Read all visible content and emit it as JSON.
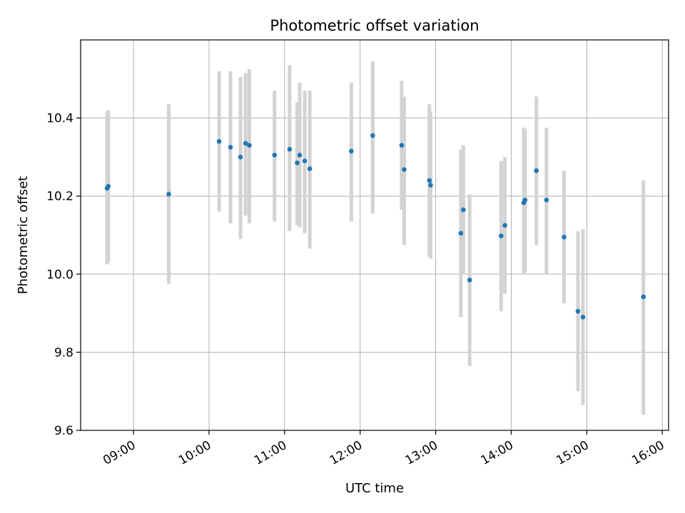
{
  "chart_data": {
    "type": "scatter",
    "title": "Photometric offset variation",
    "xlabel": "UTC time",
    "ylabel": "Photometric offset",
    "x_unit": "hours UTC",
    "xlim": [
      "08:18",
      "16:05"
    ],
    "ylim": [
      9.6,
      10.6
    ],
    "x_ticks": [
      "09:00",
      "10:00",
      "11:00",
      "12:00",
      "13:00",
      "14:00",
      "15:00",
      "16:00"
    ],
    "y_ticks": [
      "9.6",
      "9.8",
      "10.0",
      "10.2",
      "10.4"
    ],
    "grid": true,
    "legend": "none",
    "point_color": "#1f77b4",
    "errorbar_color": "#d3d3d3",
    "points": [
      {
        "x": "08:39",
        "y": 10.22,
        "ylow": 10.025,
        "yhigh": 10.415
      },
      {
        "x": "08:40",
        "y": 10.225,
        "ylow": 10.03,
        "yhigh": 10.42
      },
      {
        "x": "09:28",
        "y": 10.205,
        "ylow": 9.975,
        "yhigh": 10.435
      },
      {
        "x": "10:08",
        "y": 10.34,
        "ylow": 10.16,
        "yhigh": 10.52
      },
      {
        "x": "10:17",
        "y": 10.325,
        "ylow": 10.13,
        "yhigh": 10.52
      },
      {
        "x": "10:25",
        "y": 10.3,
        "ylow": 10.09,
        "yhigh": 10.505
      },
      {
        "x": "10:29",
        "y": 10.335,
        "ylow": 10.15,
        "yhigh": 10.515
      },
      {
        "x": "10:32",
        "y": 10.33,
        "ylow": 10.13,
        "yhigh": 10.525
      },
      {
        "x": "10:52",
        "y": 10.305,
        "ylow": 10.135,
        "yhigh": 10.47
      },
      {
        "x": "11:04",
        "y": 10.32,
        "ylow": 10.11,
        "yhigh": 10.535
      },
      {
        "x": "11:10",
        "y": 10.285,
        "ylow": 10.125,
        "yhigh": 10.44
      },
      {
        "x": "11:12",
        "y": 10.305,
        "ylow": 10.12,
        "yhigh": 10.49
      },
      {
        "x": "11:16",
        "y": 10.29,
        "ylow": 10.105,
        "yhigh": 10.47
      },
      {
        "x": "11:20",
        "y": 10.27,
        "ylow": 10.065,
        "yhigh": 10.47
      },
      {
        "x": "11:53",
        "y": 10.315,
        "ylow": 10.135,
        "yhigh": 10.49
      },
      {
        "x": "12:10",
        "y": 10.355,
        "ylow": 10.155,
        "yhigh": 10.545
      },
      {
        "x": "12:33",
        "y": 10.33,
        "ylow": 10.165,
        "yhigh": 10.495
      },
      {
        "x": "12:35",
        "y": 10.268,
        "ylow": 10.075,
        "yhigh": 10.455
      },
      {
        "x": "12:55",
        "y": 10.24,
        "ylow": 10.045,
        "yhigh": 10.435
      },
      {
        "x": "12:56",
        "y": 10.228,
        "ylow": 10.04,
        "yhigh": 10.415
      },
      {
        "x": "13:20",
        "y": 10.105,
        "ylow": 9.89,
        "yhigh": 10.32
      },
      {
        "x": "13:22",
        "y": 10.165,
        "ylow": 10.0,
        "yhigh": 10.33
      },
      {
        "x": "13:27",
        "y": 9.985,
        "ylow": 9.765,
        "yhigh": 10.205
      },
      {
        "x": "13:52",
        "y": 10.098,
        "ylow": 9.905,
        "yhigh": 10.29
      },
      {
        "x": "13:55",
        "y": 10.125,
        "ylow": 9.95,
        "yhigh": 10.3
      },
      {
        "x": "14:10",
        "y": 10.183,
        "ylow": 10.0,
        "yhigh": 10.375
      },
      {
        "x": "14:11",
        "y": 10.19,
        "ylow": 10.005,
        "yhigh": 10.37
      },
      {
        "x": "14:20",
        "y": 10.265,
        "ylow": 10.075,
        "yhigh": 10.455
      },
      {
        "x": "14:28",
        "y": 10.19,
        "ylow": 10.0,
        "yhigh": 10.375
      },
      {
        "x": "14:42",
        "y": 10.095,
        "ylow": 9.925,
        "yhigh": 10.265
      },
      {
        "x": "14:53",
        "y": 9.905,
        "ylow": 9.7,
        "yhigh": 10.11
      },
      {
        "x": "14:57",
        "y": 9.89,
        "ylow": 9.665,
        "yhigh": 10.115
      },
      {
        "x": "15:45",
        "y": 9.942,
        "ylow": 9.64,
        "yhigh": 10.24
      }
    ]
  }
}
